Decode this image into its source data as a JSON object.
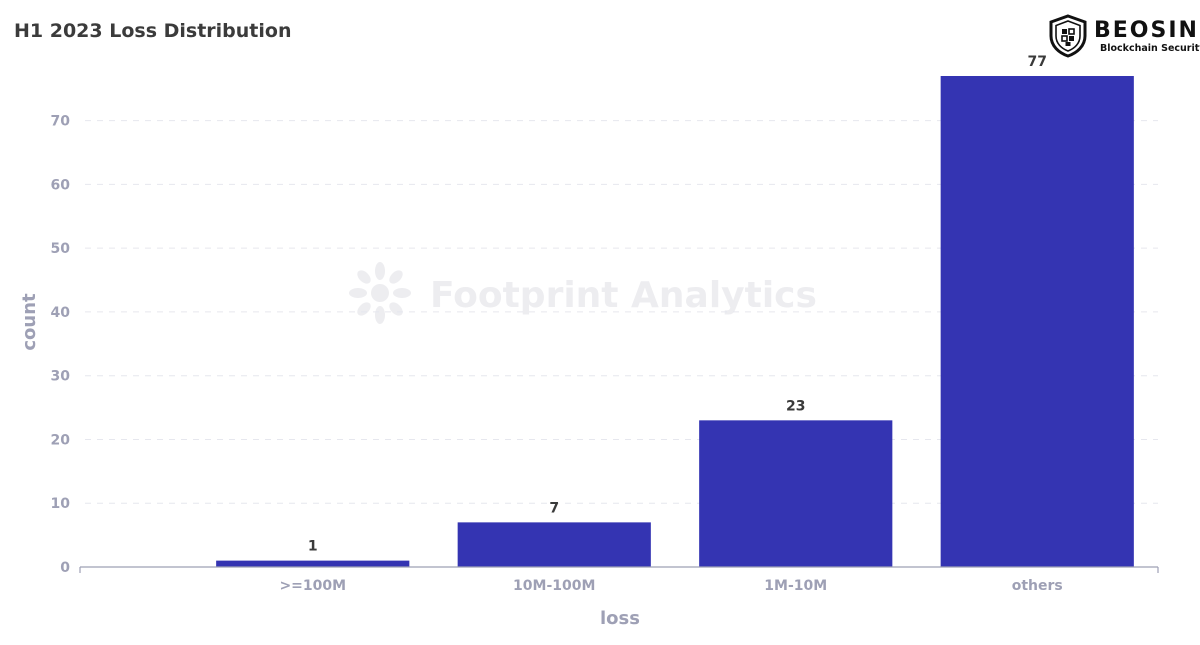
{
  "chart_data": {
    "type": "bar",
    "title": "H1 2023 Loss Distribution",
    "xlabel": "loss",
    "ylabel": "count",
    "categories": [
      ">=100M",
      "10M-100M",
      "1M-10M",
      "others"
    ],
    "values": [
      1,
      7,
      23,
      77
    ],
    "ylim": [
      0,
      77
    ],
    "yticks": [
      0,
      10,
      20,
      30,
      40,
      50,
      60,
      70
    ],
    "grid": true,
    "legend": "none",
    "bar_color": "#3434b2",
    "data_labels": true
  },
  "watermark": {
    "text": "Footprint Analytics",
    "icon": "footprint-logo-icon"
  },
  "brand": {
    "name": "BEOSIN",
    "tagline": "Blockchain Security",
    "icon": "beosin-shield-icon"
  }
}
